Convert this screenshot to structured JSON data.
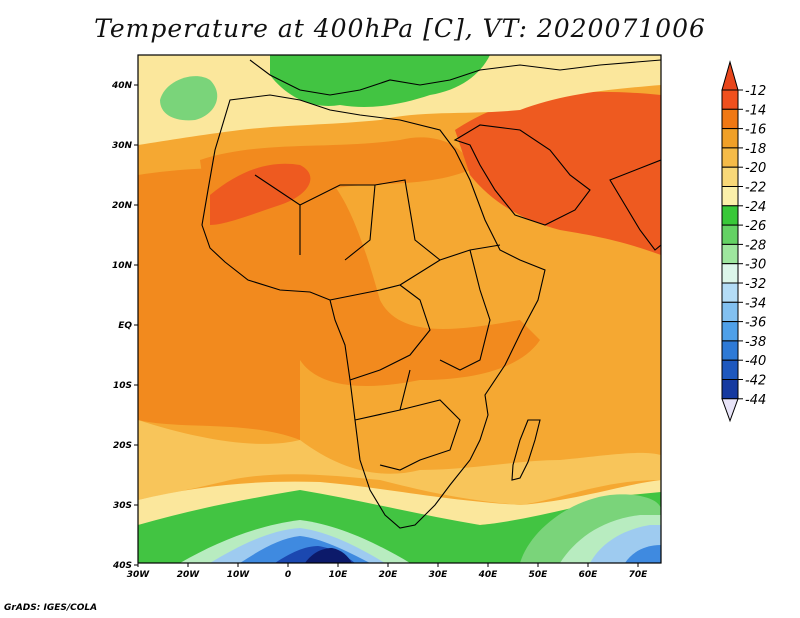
{
  "title": "Temperature at 400hPa [C], VT: 2020071006",
  "credit": "GrADS: IGES/COLA",
  "lon_labels": [
    "30W",
    "20W",
    "10W",
    "0",
    "10E",
    "20E",
    "30E",
    "40E",
    "50E",
    "60E",
    "70E"
  ],
  "lat_labels": [
    "40N",
    "30N",
    "20N",
    "10N",
    "EQ",
    "10S",
    "20S",
    "30S",
    "40S"
  ],
  "colorbar": {
    "labels": [
      "-12",
      "-14",
      "-16",
      "-18",
      "-20",
      "-22",
      "-24",
      "-26",
      "-28",
      "-30",
      "-32",
      "-34",
      "-36",
      "-38",
      "-40",
      "-42",
      "-44"
    ],
    "colors": [
      "#f0501e",
      "#f07814",
      "#f0a028",
      "#f5bb48",
      "#f8d878",
      "#fbf0aa",
      "#38c838",
      "#64d264",
      "#9ee69e",
      "#ddf6ea",
      "#b4dcf6",
      "#82c0f0",
      "#4fa0e8",
      "#2e7ad6",
      "#1e58be",
      "#163aa0",
      "#0a1470"
    ],
    "top_color": "#e8461c",
    "bottom_color": "#e8e4f8"
  },
  "field_colors": {
    "hot": "#ee5a20",
    "warm": "#f28a1e",
    "mid": "#f5a832",
    "mild": "#f8c55a",
    "pale": "#fbe79c",
    "green": "#42c442",
    "lgreen": "#7ad47a",
    "mint": "#b8ecc0",
    "lblue": "#9ecbf0",
    "blue": "#3f8ae0",
    "dblue": "#1b48b0",
    "navy": "#0c1a6a"
  }
}
